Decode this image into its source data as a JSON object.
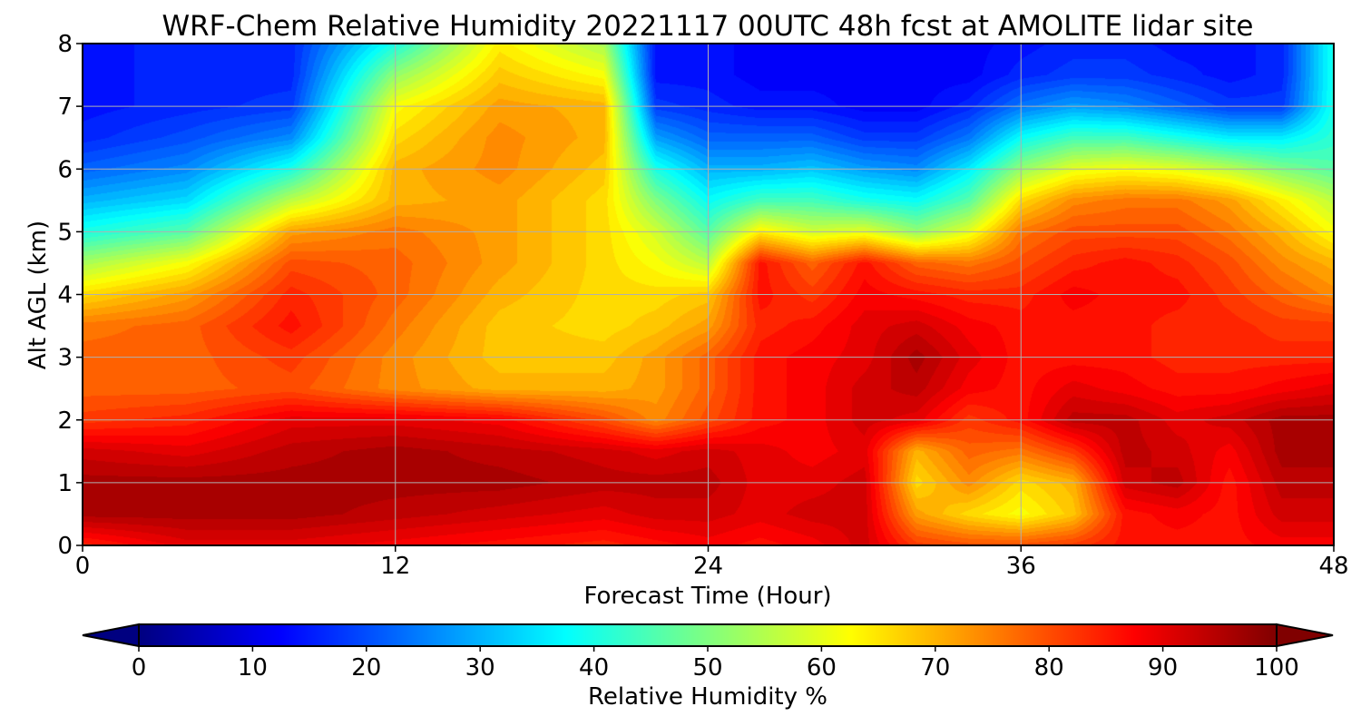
{
  "chart_data": {
    "type": "heatmap",
    "title": "WRF-Chem Relative Humidity 20221117 00UTC 48h fcst at AMOLITE lidar site",
    "xlabel": "Forecast Time (Hour)",
    "ylabel": "Alt AGL (km)",
    "xlim": [
      0,
      48
    ],
    "ylim": [
      0,
      8
    ],
    "xticks": [
      "0",
      "12",
      "24",
      "36",
      "48"
    ],
    "yticks": [
      "0",
      "1",
      "2",
      "3",
      "4",
      "5",
      "6",
      "7",
      "8"
    ],
    "grid": true,
    "colormap": "jet",
    "colorbar": {
      "label": "Relative Humidity %",
      "range": [
        0,
        100
      ],
      "ticks": [
        "0",
        "10",
        "20",
        "30",
        "40",
        "50",
        "60",
        "70",
        "80",
        "90",
        "100"
      ],
      "extend": "both",
      "orientation": "horizontal"
    },
    "x": [
      0,
      4,
      8,
      12,
      16,
      20,
      22,
      24,
      26,
      28,
      30,
      32,
      34,
      36,
      38,
      40,
      42,
      44,
      46,
      48
    ],
    "y": [
      0,
      0.5,
      1,
      1.5,
      2,
      2.5,
      3,
      3.5,
      4,
      4.5,
      5,
      5.5,
      6,
      6.5,
      7,
      7.5,
      8
    ],
    "z": [
      [
        84,
        90,
        90,
        88,
        86,
        84,
        86,
        88,
        86,
        88,
        92,
        82,
        80,
        80,
        82,
        86,
        86,
        86,
        88,
        88
      ],
      [
        96,
        96,
        96,
        94,
        92,
        90,
        92,
        92,
        90,
        92,
        92,
        72,
        66,
        62,
        68,
        86,
        88,
        86,
        92,
        92
      ],
      [
        96,
        96,
        96,
        96,
        96,
        94,
        94,
        94,
        90,
        90,
        92,
        66,
        74,
        66,
        70,
        92,
        94,
        86,
        94,
        94
      ],
      [
        92,
        90,
        94,
        96,
        94,
        92,
        90,
        92,
        90,
        88,
        90,
        70,
        78,
        76,
        82,
        94,
        92,
        88,
        96,
        96
      ],
      [
        82,
        84,
        90,
        90,
        88,
        80,
        74,
        80,
        86,
        88,
        92,
        90,
        82,
        86,
        94,
        94,
        90,
        92,
        96,
        96
      ],
      [
        78,
        78,
        80,
        74,
        70,
        70,
        72,
        78,
        86,
        88,
        92,
        94,
        88,
        86,
        90,
        88,
        86,
        86,
        88,
        90
      ],
      [
        78,
        78,
        82,
        74,
        68,
        68,
        72,
        78,
        86,
        88,
        90,
        96,
        90,
        86,
        86,
        86,
        84,
        84,
        84,
        84
      ],
      [
        76,
        78,
        86,
        76,
        68,
        66,
        68,
        72,
        84,
        86,
        90,
        92,
        88,
        86,
        86,
        86,
        84,
        84,
        82,
        82
      ],
      [
        66,
        72,
        84,
        78,
        70,
        66,
        66,
        68,
        86,
        82,
        88,
        86,
        84,
        84,
        88,
        86,
        86,
        82,
        78,
        74
      ],
      [
        54,
        62,
        80,
        78,
        72,
        66,
        62,
        56,
        86,
        78,
        86,
        78,
        76,
        80,
        84,
        86,
        84,
        80,
        74,
        70
      ],
      [
        40,
        46,
        72,
        76,
        72,
        66,
        58,
        46,
        64,
        58,
        60,
        52,
        60,
        76,
        80,
        80,
        80,
        76,
        70,
        62
      ],
      [
        30,
        34,
        56,
        70,
        72,
        66,
        50,
        38,
        44,
        44,
        40,
        38,
        46,
        66,
        74,
        76,
        76,
        72,
        64,
        56
      ],
      [
        22,
        26,
        40,
        70,
        74,
        68,
        40,
        30,
        30,
        32,
        28,
        26,
        36,
        52,
        60,
        62,
        60,
        56,
        50,
        46
      ],
      [
        16,
        20,
        26,
        66,
        74,
        70,
        28,
        22,
        22,
        22,
        18,
        18,
        24,
        38,
        44,
        44,
        40,
        36,
        36,
        42
      ],
      [
        14,
        16,
        18,
        62,
        72,
        70,
        18,
        16,
        14,
        14,
        12,
        12,
        16,
        24,
        28,
        26,
        22,
        18,
        18,
        40
      ],
      [
        14,
        16,
        16,
        52,
        68,
        62,
        14,
        14,
        12,
        12,
        12,
        12,
        12,
        16,
        18,
        18,
        16,
        14,
        16,
        40
      ],
      [
        14,
        16,
        16,
        40,
        64,
        54,
        14,
        14,
        12,
        12,
        12,
        12,
        12,
        14,
        16,
        16,
        14,
        14,
        16,
        40
      ]
    ]
  }
}
